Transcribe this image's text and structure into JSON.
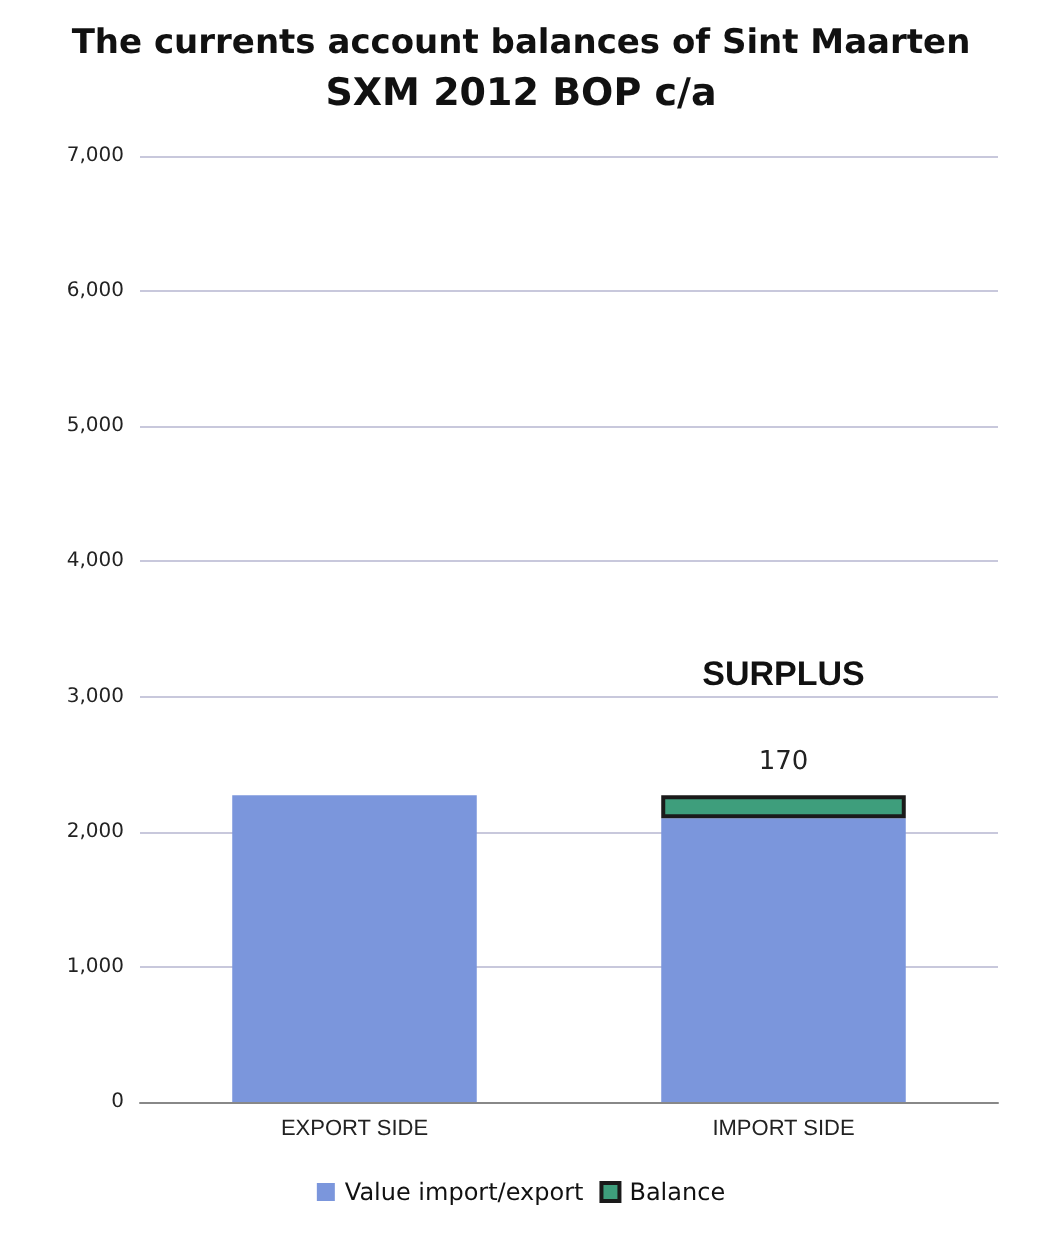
{
  "chart_data": {
    "type": "bar",
    "title": "The currents account balances of Sint Maarten",
    "subtitle": "SXM 2012 BOP c/a",
    "categories": [
      "EXPORT SIDE",
      "IMPORT SIDE"
    ],
    "stacked": true,
    "series": [
      {
        "name": "Value import/export",
        "color": "#7b96dc",
        "values": [
          2270,
          2100
        ]
      },
      {
        "name": "Balance",
        "color": "#3e9e7c",
        "values": [
          null,
          170
        ],
        "value_labels": [
          null,
          "170"
        ]
      }
    ],
    "annotations": [
      "SURPLUS"
    ],
    "ylim": [
      0,
      7000
    ],
    "yticks": [
      0,
      {
        "value": 1000,
        "label": "1,000"
      },
      {
        "value": 2000,
        "label": "2,000"
      },
      {
        "value": 3000,
        "label": "3,000"
      },
      {
        "value": 4000,
        "label": "4,000"
      },
      {
        "value": 5000,
        "label": "5,000"
      },
      {
        "value": 6000,
        "label": "6,000"
      },
      {
        "value": 7000,
        "label": "7,000"
      }
    ],
    "grid": "y",
    "legend": "bottom"
  }
}
